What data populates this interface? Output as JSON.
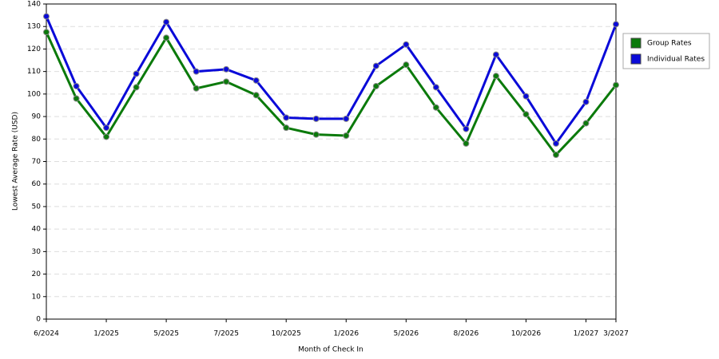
{
  "chart_data": {
    "type": "line",
    "x_label": "Month of Check In",
    "y_label": "Lowest Average Rate (USD)",
    "categories": [
      "6/2024",
      null,
      "1/2025",
      null,
      "5/2025",
      null,
      "7/2025",
      null,
      "10/2025",
      null,
      "1/2026",
      null,
      "5/2026",
      null,
      "8/2026",
      null,
      "10/2026",
      null,
      "1/2027",
      "3/2027"
    ],
    "series": [
      {
        "name": "Group Rates",
        "color": "#0b7a0b",
        "values": [
          127.5,
          98,
          81,
          103,
          125,
          102.5,
          105.5,
          99.5,
          85,
          82,
          81.5,
          103.5,
          113,
          94,
          78,
          108,
          91,
          73,
          87,
          104
        ]
      },
      {
        "name": "Individual Rates",
        "color": "#0a0ad8",
        "values": [
          134.5,
          103.5,
          85,
          109,
          132,
          110,
          111,
          106,
          89.5,
          89,
          89,
          112.5,
          122,
          103,
          84.5,
          117.5,
          99,
          78,
          96.5,
          131
        ]
      }
    ],
    "ylim": [
      0,
      140
    ],
    "yticks": [
      0,
      10,
      20,
      30,
      40,
      50,
      60,
      70,
      80,
      90,
      100,
      110,
      120,
      130,
      140
    ],
    "grid": true,
    "legend": "right"
  }
}
